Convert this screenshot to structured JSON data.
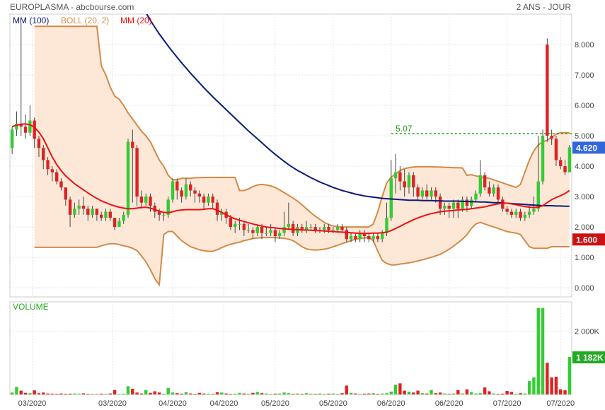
{
  "header": {
    "title": "EUROPLASMA - abcbourse.com",
    "period": "2 ANS - JOUR"
  },
  "legend": {
    "mm100": "MM (100)",
    "boll": "BOLL (20, 2)",
    "mm20": "MM (20)"
  },
  "colors": {
    "up": "#33cc33",
    "down": "#dd2222",
    "mm100": "#0a1a7a",
    "mm20": "#ee1111",
    "boll": "#d48a45",
    "boll_fill": "#fde8d8",
    "level": "#229922",
    "price_badge": "#3366dd",
    "low_badge": "#cc1111",
    "vol_badge": "#22aa22"
  },
  "annotations": {
    "level_label": "5.07",
    "level_value": 5.07,
    "last_price": "4.620",
    "last_price_value": 4.62,
    "low_price": "1.600",
    "low_price_value": 1.6,
    "last_volume": "1 182K",
    "last_volume_value": 1182,
    "volume_title": "VOLUME"
  },
  "chart_data": {
    "type": "candlestick",
    "price_axis": {
      "ylim": [
        -0.3,
        9.0
      ],
      "ticks": [
        "0.000",
        "1.000",
        "2.000",
        "3.000",
        "4.000",
        "5.000",
        "6.000",
        "7.000",
        "8.000"
      ],
      "tick_values": [
        0,
        1,
        2,
        3,
        4,
        5,
        6,
        7,
        8
      ]
    },
    "volume_axis": {
      "ylim": [
        0,
        2700
      ],
      "ticks": [
        "2 000K"
      ],
      "tick_values": [
        2000
      ]
    },
    "x_labels": [
      "03/2020",
      "03/2020",
      "04/2020",
      "04/2020",
      "05/2020",
      "05/2020",
      "06/2020",
      "06/2020",
      "07/2020",
      "07/2020"
    ],
    "x_label_positions": [
      4.5,
      22.5,
      36,
      47.5,
      59,
      72,
      85,
      98,
      111,
      123
    ],
    "candles": [
      [
        4.6,
        5.2,
        4.4,
        5.3
      ],
      [
        5.2,
        5.4,
        5.0,
        5.8
      ],
      [
        5.4,
        5.3,
        5.0,
        8.7
      ],
      [
        5.3,
        5.1,
        4.9,
        5.7
      ],
      [
        5.1,
        5.5,
        5.0,
        6.0
      ],
      [
        5.5,
        4.9,
        4.6,
        5.6
      ],
      [
        4.9,
        4.6,
        4.3,
        5.0
      ],
      [
        4.6,
        4.2,
        3.9,
        4.7
      ],
      [
        4.2,
        3.9,
        3.7,
        4.3
      ],
      [
        3.9,
        3.8,
        3.5,
        4.0
      ],
      [
        3.8,
        3.5,
        3.4,
        3.9
      ],
      [
        3.5,
        3.3,
        3.2,
        3.6
      ],
      [
        3.3,
        2.9,
        2.7,
        3.3
      ],
      [
        2.9,
        2.4,
        2.0,
        3.0
      ],
      [
        2.4,
        2.6,
        2.3,
        2.8
      ],
      [
        2.6,
        2.7,
        2.4,
        2.9
      ],
      [
        2.7,
        2.6,
        2.4,
        3.0
      ],
      [
        2.6,
        2.4,
        2.2,
        2.7
      ],
      [
        2.4,
        2.6,
        2.3,
        2.7
      ],
      [
        2.6,
        2.4,
        2.2,
        2.6
      ],
      [
        2.4,
        2.3,
        2.2,
        2.5
      ],
      [
        2.3,
        2.5,
        2.2,
        2.6
      ],
      [
        2.5,
        2.3,
        2.2,
        2.6
      ],
      [
        2.3,
        2.0,
        1.9,
        2.3
      ],
      [
        2.0,
        2.2,
        2.0,
        2.3
      ],
      [
        2.2,
        2.4,
        2.1,
        2.5
      ],
      [
        2.4,
        4.8,
        2.3,
        4.9
      ],
      [
        4.8,
        4.6,
        2.8,
        5.2
      ],
      [
        4.6,
        3.0,
        2.7,
        4.7
      ],
      [
        3.0,
        2.8,
        2.6,
        3.2
      ],
      [
        2.8,
        3.0,
        2.7,
        3.1
      ],
      [
        3.0,
        2.7,
        2.5,
        3.1
      ],
      [
        2.7,
        2.5,
        2.3,
        2.8
      ],
      [
        2.5,
        2.4,
        2.2,
        2.6
      ],
      [
        2.4,
        2.4,
        2.2,
        2.5
      ],
      [
        2.4,
        2.9,
        2.3,
        3.0
      ],
      [
        2.9,
        3.5,
        2.8,
        3.6
      ],
      [
        3.5,
        3.2,
        2.9,
        3.6
      ],
      [
        3.2,
        3.0,
        2.8,
        3.3
      ],
      [
        3.0,
        3.4,
        2.9,
        3.6
      ],
      [
        3.4,
        3.2,
        3.0,
        3.5
      ],
      [
        3.2,
        3.1,
        2.8,
        3.3
      ],
      [
        3.1,
        3.0,
        2.8,
        3.2
      ],
      [
        3.0,
        2.8,
        2.6,
        3.1
      ],
      [
        2.8,
        3.0,
        2.7,
        3.1
      ],
      [
        3.0,
        2.8,
        2.6,
        3.1
      ],
      [
        2.8,
        2.4,
        2.2,
        2.9
      ],
      [
        2.4,
        2.5,
        2.2,
        2.6
      ],
      [
        2.5,
        2.3,
        2.1,
        2.6
      ],
      [
        2.3,
        2.0,
        1.9,
        2.4
      ],
      [
        2.0,
        2.1,
        1.8,
        2.2
      ],
      [
        2.1,
        2.1,
        1.9,
        2.3
      ],
      [
        2.1,
        1.9,
        1.7,
        2.2
      ],
      [
        1.9,
        1.9,
        1.8,
        2.1
      ],
      [
        1.9,
        1.8,
        1.6,
        2.0
      ],
      [
        1.8,
        2.0,
        1.7,
        2.1
      ],
      [
        2.0,
        1.8,
        1.6,
        2.1
      ],
      [
        1.8,
        1.8,
        1.7,
        2.0
      ],
      [
        1.8,
        1.9,
        1.7,
        2.1
      ],
      [
        1.9,
        1.7,
        1.5,
        2.0
      ],
      [
        1.7,
        1.8,
        1.6,
        1.9
      ],
      [
        1.8,
        2.0,
        1.7,
        2.5
      ],
      [
        2.0,
        2.1,
        1.9,
        2.8
      ],
      [
        2.1,
        1.8,
        1.7,
        2.2
      ],
      [
        1.8,
        2.0,
        1.7,
        2.1
      ],
      [
        2.0,
        1.9,
        1.8,
        2.1
      ],
      [
        1.9,
        2.0,
        1.8,
        2.2
      ],
      [
        2.0,
        2.0,
        1.9,
        2.1
      ],
      [
        2.0,
        1.9,
        1.8,
        2.1
      ],
      [
        1.9,
        1.9,
        1.8,
        2.0
      ],
      [
        1.9,
        2.0,
        1.8,
        2.1
      ],
      [
        2.0,
        1.9,
        1.8,
        2.1
      ],
      [
        1.9,
        1.9,
        1.8,
        2.0
      ],
      [
        1.9,
        2.0,
        1.8,
        2.1
      ],
      [
        2.0,
        1.9,
        1.8,
        2.1
      ],
      [
        1.9,
        1.6,
        1.5,
        2.0
      ],
      [
        1.6,
        1.7,
        1.5,
        1.8
      ],
      [
        1.7,
        1.6,
        1.5,
        1.8
      ],
      [
        1.6,
        1.8,
        1.5,
        1.9
      ],
      [
        1.8,
        1.7,
        1.5,
        1.9
      ],
      [
        1.7,
        1.6,
        1.5,
        1.8
      ],
      [
        1.6,
        1.7,
        1.5,
        1.8
      ],
      [
        1.7,
        1.6,
        1.5,
        1.8
      ],
      [
        1.6,
        1.8,
        1.5,
        1.9
      ],
      [
        1.8,
        2.3,
        1.7,
        2.8
      ],
      [
        2.3,
        3.6,
        2.2,
        4.2
      ],
      [
        3.6,
        3.8,
        3.1,
        4.4
      ],
      [
        3.8,
        3.5,
        3.2,
        4.0
      ],
      [
        3.5,
        3.3,
        3.0,
        3.9
      ],
      [
        3.3,
        3.7,
        3.1,
        3.8
      ],
      [
        3.7,
        3.3,
        3.0,
        3.8
      ],
      [
        3.3,
        3.0,
        2.9,
        3.4
      ],
      [
        3.0,
        3.2,
        2.9,
        3.3
      ],
      [
        3.2,
        3.0,
        2.9,
        3.4
      ],
      [
        3.0,
        3.2,
        2.9,
        3.3
      ],
      [
        3.2,
        3.0,
        2.8,
        3.3
      ],
      [
        3.0,
        2.6,
        2.4,
        3.1
      ],
      [
        2.6,
        2.7,
        2.4,
        2.8
      ],
      [
        2.7,
        2.6,
        2.3,
        2.8
      ],
      [
        2.6,
        2.8,
        2.3,
        2.9
      ],
      [
        2.8,
        2.6,
        2.3,
        2.9
      ],
      [
        2.6,
        2.9,
        2.5,
        3.0
      ],
      [
        2.9,
        2.7,
        2.5,
        3.0
      ],
      [
        2.7,
        2.9,
        2.6,
        3.0
      ],
      [
        2.9,
        3.1,
        2.8,
        3.2
      ],
      [
        3.1,
        3.7,
        3.0,
        4.2
      ],
      [
        3.7,
        3.3,
        3.2,
        3.8
      ],
      [
        3.3,
        3.1,
        3.0,
        3.5
      ],
      [
        3.1,
        3.3,
        3.0,
        3.4
      ],
      [
        3.3,
        2.9,
        2.8,
        3.4
      ],
      [
        2.9,
        2.6,
        2.5,
        3.0
      ],
      [
        2.6,
        2.5,
        2.4,
        2.7
      ],
      [
        2.5,
        2.4,
        2.3,
        2.6
      ],
      [
        2.4,
        2.5,
        2.3,
        2.6
      ],
      [
        2.5,
        2.3,
        2.2,
        2.6
      ],
      [
        2.3,
        2.4,
        2.2,
        2.5
      ],
      [
        2.4,
        2.5,
        2.3,
        2.7
      ],
      [
        2.5,
        2.6,
        2.4,
        3.0
      ],
      [
        2.6,
        3.5,
        2.5,
        5.0
      ],
      [
        3.5,
        5.0,
        3.4,
        5.2
      ],
      [
        8.0,
        5.0,
        4.8,
        8.2
      ],
      [
        5.0,
        4.9,
        4.7,
        5.2
      ],
      [
        4.9,
        4.2,
        4.0,
        5.0
      ],
      [
        4.2,
        4.0,
        3.9,
        4.3
      ],
      [
        4.0,
        3.8,
        3.7,
        4.2
      ],
      [
        3.8,
        4.62,
        3.8,
        4.7
      ]
    ],
    "volumes": [
      60,
      240,
      120,
      50,
      40,
      130,
      40,
      60,
      30,
      25,
      20,
      30,
      20,
      25,
      30,
      25,
      35,
      20,
      20,
      15,
      25,
      20,
      30,
      140,
      20,
      25,
      260,
      180,
      60,
      30,
      140,
      50,
      100,
      60,
      20,
      200,
      60,
      40,
      25,
      70,
      30,
      20,
      50,
      30,
      25,
      20,
      70,
      60,
      30,
      20,
      25,
      50,
      30,
      20,
      50,
      80,
      40,
      30,
      20,
      25,
      30,
      60,
      40,
      20,
      30,
      20,
      40,
      25,
      20,
      30,
      20,
      25,
      30,
      20,
      40,
      280,
      50,
      30,
      20,
      25,
      30,
      40,
      20,
      30,
      40,
      90,
      310,
      350,
      120,
      90,
      60,
      120,
      40,
      30,
      140,
      40,
      60,
      30,
      20,
      30,
      140,
      30,
      160,
      70,
      30,
      40,
      220,
      100,
      30,
      20,
      25,
      110,
      80,
      25,
      40,
      30,
      420,
      540,
      2730,
      2730,
      1000,
      540,
      560,
      160,
      130,
      1182
    ],
    "mm20": [
      5.3,
      5.35,
      5.38,
      5.39,
      5.36,
      5.28,
      5.12,
      4.9,
      4.6,
      4.3,
      4.05,
      3.85,
      3.68,
      3.55,
      3.42,
      3.32,
      3.22,
      3.12,
      3.02,
      2.94,
      2.86,
      2.8,
      2.74,
      2.69,
      2.65,
      2.62,
      2.6,
      2.6,
      2.62,
      2.64,
      2.65,
      2.62,
      2.57,
      2.52,
      2.48,
      2.47,
      2.5,
      2.54,
      2.56,
      2.57,
      2.57,
      2.57,
      2.57,
      2.58,
      2.6,
      2.6,
      2.55,
      2.48,
      2.4,
      2.33,
      2.27,
      2.22,
      2.18,
      2.14,
      2.1,
      2.06,
      2.03,
      2.0,
      1.98,
      1.97,
      1.95,
      1.94,
      1.93,
      1.92,
      1.91,
      1.9,
      1.9,
      1.89,
      1.88,
      1.88,
      1.87,
      1.86,
      1.85,
      1.84,
      1.83,
      1.82,
      1.81,
      1.8,
      1.79,
      1.79,
      1.79,
      1.8,
      1.8,
      1.81,
      1.83,
      1.88,
      1.95,
      2.02,
      2.1,
      2.17,
      2.24,
      2.3,
      2.35,
      2.4,
      2.44,
      2.47,
      2.5,
      2.52,
      2.53,
      2.54,
      2.56,
      2.57,
      2.58,
      2.6,
      2.62,
      2.64,
      2.66,
      2.7,
      2.73,
      2.76,
      2.78,
      2.78,
      2.76,
      2.73,
      2.7,
      2.67,
      2.65,
      2.64,
      2.65,
      2.7,
      2.8,
      2.9,
      2.97,
      3.03,
      3.1,
      3.2
    ],
    "mm100": [
      null,
      null,
      null,
      null,
      null,
      null,
      null,
      null,
      null,
      null,
      null,
      null,
      null,
      null,
      null,
      null,
      null,
      null,
      null,
      null,
      null,
      null,
      null,
      null,
      null,
      null,
      null,
      null,
      null,
      null,
      9.05,
      8.8,
      8.57,
      8.35,
      8.15,
      7.95,
      7.76,
      7.58,
      7.4,
      7.23,
      7.06,
      6.9,
      6.74,
      6.58,
      6.43,
      6.28,
      6.14,
      6.0,
      5.86,
      5.72,
      5.58,
      5.44,
      5.3,
      5.16,
      5.03,
      4.9,
      4.77,
      4.64,
      4.51,
      4.39,
      4.27,
      4.16,
      4.05,
      3.95,
      3.86,
      3.78,
      3.7,
      3.62,
      3.55,
      3.48,
      3.42,
      3.36,
      3.3,
      3.25,
      3.2,
      3.16,
      3.12,
      3.08,
      3.05,
      3.02,
      3.0,
      2.98,
      2.96,
      2.94,
      2.93,
      2.92,
      2.91,
      2.9,
      2.89,
      2.88,
      2.88,
      2.88,
      2.87,
      2.87,
      2.87,
      2.86,
      2.86,
      2.85,
      2.85,
      2.85,
      2.85,
      2.84,
      2.84,
      2.83,
      2.83,
      2.82,
      2.82,
      2.81,
      2.8,
      2.8,
      2.79,
      2.78,
      2.77,
      2.76,
      2.75,
      2.74,
      2.73,
      2.72,
      2.71,
      2.7,
      2.7,
      2.7,
      2.69,
      2.69,
      2.68,
      2.68
    ],
    "boll_upper": [
      null,
      null,
      null,
      null,
      null,
      8.6,
      8.6,
      8.6,
      8.6,
      8.6,
      8.6,
      8.6,
      8.6,
      8.6,
      8.6,
      8.6,
      8.6,
      8.6,
      8.6,
      8.6,
      7.3,
      7.0,
      6.6,
      6.3,
      6.2,
      6.0,
      5.75,
      5.55,
      5.35,
      5.15,
      5.0,
      4.8,
      4.5,
      4.2,
      4.0,
      3.7,
      3.55,
      3.55,
      3.6,
      3.6,
      3.6,
      3.62,
      3.62,
      3.63,
      3.63,
      3.63,
      3.63,
      3.63,
      3.63,
      3.63,
      3.63,
      3.2,
      3.2,
      3.25,
      3.33,
      3.38,
      3.4,
      3.38,
      3.35,
      3.3,
      3.22,
      3.13,
      3.04,
      2.95,
      2.85,
      2.73,
      2.6,
      2.47,
      2.35,
      2.25,
      2.15,
      2.08,
      2.03,
      2.01,
      2.0,
      2.0,
      2.0,
      2.0,
      2.0,
      2.0,
      2.0,
      2.1,
      2.5,
      3.0,
      3.45,
      3.63,
      3.75,
      3.85,
      3.92,
      3.95,
      3.97,
      3.98,
      3.98,
      3.98,
      3.98,
      3.97,
      3.97,
      3.96,
      3.96,
      3.95,
      3.95,
      3.94,
      3.7,
      3.72,
      3.68,
      3.65,
      3.62,
      3.6,
      3.55,
      3.5,
      3.45,
      3.4,
      3.35,
      3.3,
      3.4,
      3.8,
      4.2,
      4.5,
      4.7,
      4.8,
      4.85,
      4.95,
      5.05,
      5.1,
      5.1,
      5.1
    ],
    "boll_lower": [
      null,
      null,
      null,
      null,
      null,
      1.33,
      1.33,
      1.33,
      1.33,
      1.33,
      1.33,
      1.33,
      1.33,
      1.33,
      1.33,
      1.33,
      1.33,
      1.33,
      1.33,
      1.33,
      1.38,
      1.42,
      1.45,
      1.45,
      1.42,
      1.38,
      1.35,
      1.3,
      1.22,
      1.05,
      0.85,
      0.6,
      0.3,
      0.1,
      1.75,
      1.85,
      1.85,
      1.7,
      1.55,
      1.45,
      1.35,
      1.3,
      1.25,
      1.22,
      1.2,
      1.2,
      1.25,
      1.32,
      1.38,
      1.43,
      1.47,
      1.5,
      1.55,
      1.58,
      1.62,
      1.64,
      1.65,
      1.65,
      1.65,
      1.65,
      1.64,
      1.63,
      1.6,
      1.55,
      1.45,
      1.35,
      1.28,
      1.25,
      1.24,
      1.25,
      1.27,
      1.3,
      1.35,
      1.4,
      1.45,
      1.5,
      1.55,
      1.6,
      1.62,
      1.64,
      1.65,
      1.55,
      1.2,
      0.9,
      0.8,
      0.75,
      0.75,
      0.78,
      0.8,
      0.82,
      0.85,
      0.88,
      0.92,
      0.96,
      1.0,
      1.05,
      1.1,
      1.18,
      1.27,
      1.37,
      1.48,
      1.6,
      1.75,
      1.95,
      2.1,
      2.15,
      2.1,
      2.05,
      2.0,
      1.95,
      1.9,
      1.85,
      1.82,
      1.8,
      1.75,
      1.55,
      1.35,
      1.3,
      1.3,
      1.3,
      1.3,
      1.35,
      1.35,
      1.35,
      1.35,
      1.35
    ]
  }
}
